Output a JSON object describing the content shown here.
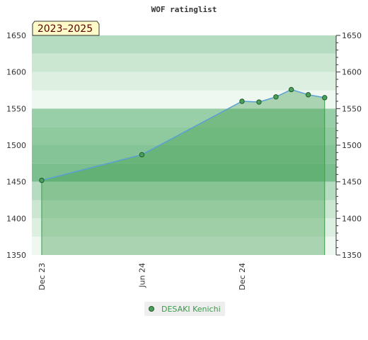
{
  "chart_data": {
    "type": "area",
    "title": "WOF ratinglist",
    "period_label": "2023–2025",
    "xlabel": "",
    "ylabel": "",
    "ylim": [
      1350,
      1650
    ],
    "y_ticks": [
      1350,
      1400,
      1450,
      1500,
      1550,
      1600,
      1650
    ],
    "x_ticks": [
      {
        "date": "2023-12-01",
        "label": "Dec 23"
      },
      {
        "date": "2024-06-01",
        "label": "Jun 24"
      },
      {
        "date": "2024-12-01",
        "label": "Dec 24"
      }
    ],
    "xlim": [
      "2023-11-13",
      "2025-05-22"
    ],
    "legend_position": "bottom-center",
    "grid": true,
    "series": [
      {
        "name": "DESAKI Kenichi",
        "color": "#3c9a4a",
        "line_color": "#5a9fd4",
        "points": [
          {
            "x": "2023-12-01",
            "y": 1452
          },
          {
            "x": "2024-06-01",
            "y": 1487
          },
          {
            "x": "2024-12-01",
            "y": 1560
          },
          {
            "x": "2025-01-01",
            "y": 1559
          },
          {
            "x": "2025-02-01",
            "y": 1566
          },
          {
            "x": "2025-03-01",
            "y": 1576
          },
          {
            "x": "2025-04-01",
            "y": 1569
          },
          {
            "x": "2025-05-01",
            "y": 1565
          }
        ]
      }
    ]
  }
}
